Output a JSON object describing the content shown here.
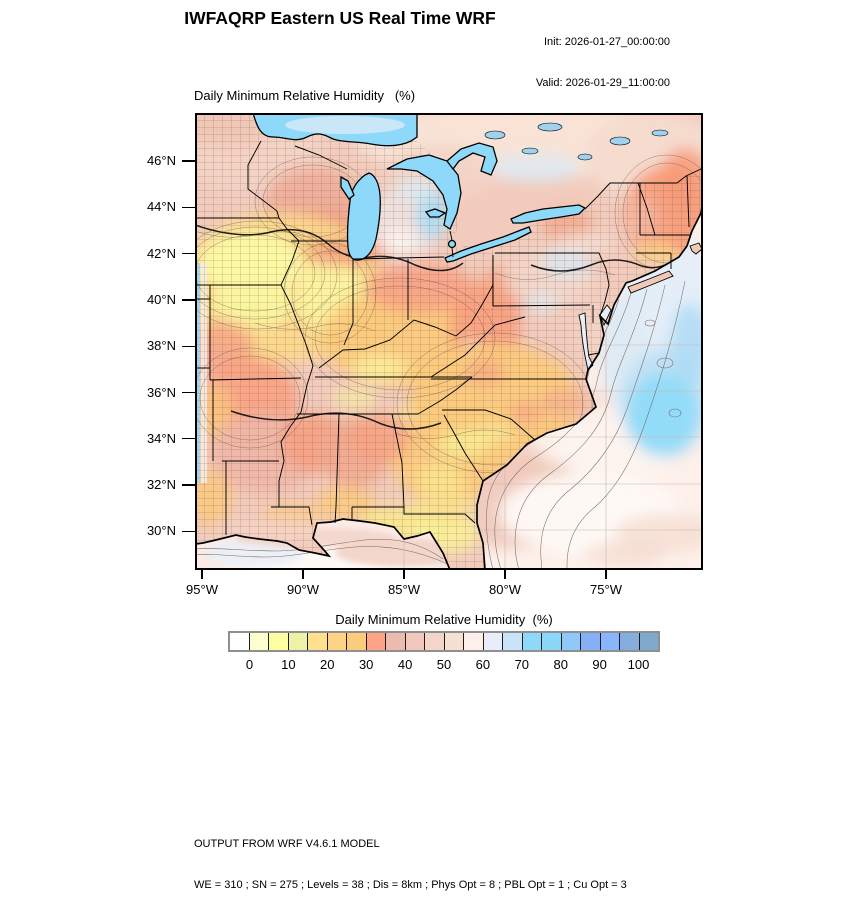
{
  "header": {
    "title": "IWFAQRP Eastern US Real Time WRF",
    "init": "Init: 2026-01-27_00:00:00",
    "valid": "Valid: 2026-01-29_11:00:00"
  },
  "map": {
    "title": "Daily Minimum Relative Humidity   (%)",
    "lat_labels": [
      "46°N",
      "44°N",
      "42°N",
      "40°N",
      "38°N",
      "36°N",
      "34°N",
      "32°N",
      "30°N"
    ],
    "lon_labels": [
      "95°W",
      "90°W",
      "85°W",
      "80°W",
      "75°W"
    ]
  },
  "colorbar": {
    "title": "Daily Minimum Relative Humidity  (%)",
    "tick_labels": [
      "0",
      "10",
      "20",
      "30",
      "40",
      "50",
      "60",
      "70",
      "80",
      "90",
      "100"
    ],
    "colors": [
      "#ffffff",
      "#feffd0",
      "#fdfda2",
      "#edf2a6",
      "#fee08e",
      "#fdd385",
      "#fccc7d",
      "#fda487",
      "#edbab0",
      "#f2c7bb",
      "#f3d6c9",
      "#f6e0d2",
      "#fdefe9",
      "#e9edfb",
      "#c9e3f9",
      "#8ed9f9",
      "#8bd7f9",
      "#90c8f8",
      "#86aff6",
      "#88b5fb",
      "#85aede",
      "#80a9cb"
    ]
  },
  "footer": {
    "line1": "OUTPUT FROM WRF V4.6.1 MODEL",
    "line2": "WE = 310 ; SN = 275 ; Levels = 38 ; Dis = 8km ; Phys Opt = 8 ; PBL Opt = 1 ; Cu Opt = 3"
  },
  "chart_data": {
    "type": "heatmap",
    "title": "Daily Minimum Relative Humidity (%)",
    "region": "Eastern US",
    "x_ticks": [
      "95°W",
      "90°W",
      "85°W",
      "80°W",
      "75°W"
    ],
    "y_ticks": [
      "46°N",
      "44°N",
      "42°N",
      "40°N",
      "38°N",
      "36°N",
      "34°N",
      "32°N",
      "30°N"
    ],
    "colorbar_values": [
      0,
      10,
      20,
      30,
      40,
      50,
      60,
      70,
      80,
      90,
      100
    ],
    "colorbar_colors": [
      "#ffffff",
      "#feffd0",
      "#fdfda2",
      "#edf2a6",
      "#fee08e",
      "#fdd385",
      "#fccc7d",
      "#fda487",
      "#edbab0",
      "#f2c7bb",
      "#f3d6c9",
      "#f6e0d2",
      "#fdefe9",
      "#e9edfb",
      "#c9e3f9",
      "#8ed9f9",
      "#8bd7f9",
      "#90c8f8",
      "#86aff6",
      "#88b5fb",
      "#85aede",
      "#80a9cb"
    ],
    "legend_position": "bottom"
  }
}
